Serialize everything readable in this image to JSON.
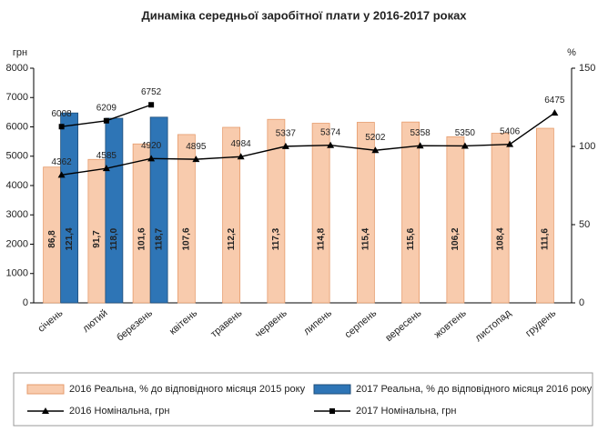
{
  "chart_data": {
    "type": "bar",
    "title": "Динаміка середньої заробітної плати у 2016-2017 роках",
    "ylabel": "грн",
    "y2label": "%",
    "categories": [
      "січень",
      "лютий",
      "березень",
      "квітень",
      "травень",
      "червень",
      "липень",
      "серпень",
      "вересень",
      "жовтень",
      "листопад",
      "грудень"
    ],
    "ylim": [
      0,
      8000
    ],
    "yticks": [
      0,
      1000,
      2000,
      3000,
      4000,
      5000,
      6000,
      7000,
      8000
    ],
    "y2lim": [
      0,
      150
    ],
    "y2ticks": [
      0,
      50,
      100,
      150
    ],
    "series": [
      {
        "name": "2016 Реальна, % до відповідного місяця 2015 року",
        "type": "bar",
        "axis": "y2",
        "color": "#f8cbad",
        "values": [
          86.8,
          91.7,
          101.6,
          107.6,
          112.2,
          117.3,
          114.8,
          115.4,
          115.6,
          106.2,
          108.4,
          111.6
        ],
        "value_labels": [
          "86,8",
          "91,7",
          "101,6",
          "107,6",
          "112,2",
          "117,3",
          "114,8",
          "115,4",
          "115,6",
          "106,2",
          "108,4",
          "111,6"
        ]
      },
      {
        "name": "2017 Реальна, % до відповідного місяця 2016 року",
        "type": "bar",
        "axis": "y2",
        "color": "#2e75b6",
        "values": [
          121.4,
          118.0,
          118.7,
          null,
          null,
          null,
          null,
          null,
          null,
          null,
          null,
          null
        ],
        "value_labels": [
          "121,4",
          "118,0",
          "118,7",
          null,
          null,
          null,
          null,
          null,
          null,
          null,
          null,
          null
        ]
      },
      {
        "name": "2016 Номінальна, грн",
        "type": "line",
        "marker": "triangle",
        "color": "#000000",
        "values": [
          4362,
          4585,
          4920,
          4895,
          4984,
          5337,
          5374,
          5202,
          5358,
          5350,
          5406,
          6475
        ]
      },
      {
        "name": "2017 Номінальна, грн",
        "type": "line",
        "marker": "square",
        "color": "#000000",
        "values": [
          6008,
          6209,
          6752,
          null,
          null,
          null,
          null,
          null,
          null,
          null,
          null,
          null
        ]
      }
    ]
  }
}
